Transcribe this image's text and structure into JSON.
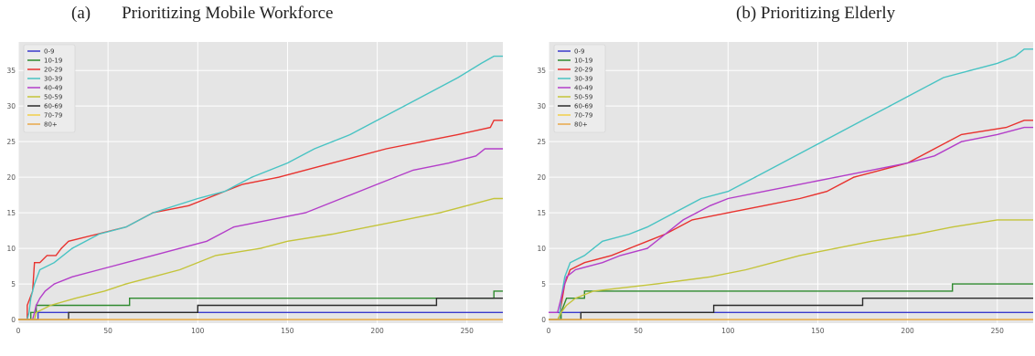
{
  "titles": {
    "a_label": "(a)",
    "a_text": "Prioritizing Mobile Workforce",
    "b_text": "(b) Prioritizing Elderly"
  },
  "colors": {
    "0-9": "#3a3acb",
    "10-19": "#2f8a2f",
    "20-29": "#e8322e",
    "30-39": "#48c3c3",
    "40-49": "#b33ec9",
    "50-59": "#c4c43a",
    "60-69": "#2b2b2b",
    "70-79": "#f2cf4a",
    "80+": "#e8a84a"
  },
  "chart_data": [
    {
      "type": "line",
      "title": "Prioritizing Mobile Workforce",
      "xlim": [
        0,
        270
      ],
      "ylim": [
        -0.5,
        39
      ],
      "xticks": [
        0,
        50,
        100,
        150,
        200,
        250
      ],
      "yticks": [
        0,
        5,
        10,
        15,
        20,
        25,
        30,
        35
      ],
      "legend_position": "top-left",
      "grid": true,
      "series": [
        {
          "name": "0-9",
          "points": [
            [
              0,
              0
            ],
            [
              11,
              0
            ],
            [
              11,
              1
            ],
            [
              270,
              1
            ]
          ]
        },
        {
          "name": "10-19",
          "points": [
            [
              0,
              0
            ],
            [
              7,
              0
            ],
            [
              7,
              1
            ],
            [
              10,
              1
            ],
            [
              10,
              2
            ],
            [
              62,
              2
            ],
            [
              62,
              3
            ],
            [
              265,
              3
            ],
            [
              265,
              4
            ],
            [
              270,
              4
            ]
          ]
        },
        {
          "name": "20-29",
          "points": [
            [
              0,
              0
            ],
            [
              5,
              0
            ],
            [
              5,
              2
            ],
            [
              8,
              4
            ],
            [
              9,
              8
            ],
            [
              12,
              8
            ],
            [
              16,
              9
            ],
            [
              21,
              9
            ],
            [
              24,
              10
            ],
            [
              28,
              11
            ],
            [
              44,
              12
            ],
            [
              60,
              13
            ],
            [
              75,
              15
            ],
            [
              95,
              16
            ],
            [
              105,
              17
            ],
            [
              125,
              19
            ],
            [
              145,
              20
            ],
            [
              175,
              22
            ],
            [
              205,
              24
            ],
            [
              225,
              25
            ],
            [
              245,
              26
            ],
            [
              263,
              27
            ],
            [
              265,
              28
            ],
            [
              270,
              28
            ]
          ]
        },
        {
          "name": "30-39",
          "points": [
            [
              0,
              0
            ],
            [
              5,
              0
            ],
            [
              6,
              1
            ],
            [
              7,
              3
            ],
            [
              9,
              5
            ],
            [
              12,
              7
            ],
            [
              20,
              8
            ],
            [
              30,
              10
            ],
            [
              45,
              12
            ],
            [
              60,
              13
            ],
            [
              75,
              15
            ],
            [
              100,
              17
            ],
            [
              115,
              18
            ],
            [
              130,
              20
            ],
            [
              150,
              22
            ],
            [
              165,
              24
            ],
            [
              185,
              26
            ],
            [
              200,
              28
            ],
            [
              215,
              30
            ],
            [
              230,
              32
            ],
            [
              245,
              34
            ],
            [
              258,
              36
            ],
            [
              265,
              37
            ],
            [
              270,
              37
            ]
          ]
        },
        {
          "name": "40-49",
          "points": [
            [
              0,
              0
            ],
            [
              8,
              0
            ],
            [
              9,
              1
            ],
            [
              10,
              2
            ],
            [
              12,
              3
            ],
            [
              15,
              4
            ],
            [
              20,
              5
            ],
            [
              30,
              6
            ],
            [
              45,
              7
            ],
            [
              60,
              8
            ],
            [
              75,
              9
            ],
            [
              90,
              10
            ],
            [
              105,
              11
            ],
            [
              120,
              13
            ],
            [
              140,
              14
            ],
            [
              160,
              15
            ],
            [
              180,
              17
            ],
            [
              200,
              19
            ],
            [
              220,
              21
            ],
            [
              240,
              22
            ],
            [
              255,
              23
            ],
            [
              260,
              24
            ],
            [
              270,
              24
            ]
          ]
        },
        {
          "name": "50-59",
          "points": [
            [
              0,
              0
            ],
            [
              9,
              0
            ],
            [
              10,
              1
            ],
            [
              18,
              2
            ],
            [
              32,
              3
            ],
            [
              48,
              4
            ],
            [
              60,
              5
            ],
            [
              75,
              6
            ],
            [
              90,
              7
            ],
            [
              110,
              9
            ],
            [
              135,
              10
            ],
            [
              150,
              11
            ],
            [
              175,
              12
            ],
            [
              195,
              13
            ],
            [
              215,
              14
            ],
            [
              235,
              15
            ],
            [
              250,
              16
            ],
            [
              265,
              17
            ],
            [
              270,
              17
            ]
          ]
        },
        {
          "name": "60-69",
          "points": [
            [
              0,
              0
            ],
            [
              28,
              0
            ],
            [
              28,
              1
            ],
            [
              100,
              1
            ],
            [
              100,
              2
            ],
            [
              233,
              2
            ],
            [
              233,
              3
            ],
            [
              270,
              3
            ]
          ]
        },
        {
          "name": "70-79",
          "points": [
            [
              0,
              0
            ],
            [
              270,
              0
            ]
          ]
        },
        {
          "name": "80+",
          "points": [
            [
              0,
              0
            ],
            [
              270,
              0
            ]
          ]
        }
      ]
    },
    {
      "type": "line",
      "title": "Prioritizing Elderly",
      "xlim": [
        0,
        270
      ],
      "ylim": [
        -0.5,
        39
      ],
      "xticks": [
        0,
        50,
        100,
        150,
        200,
        250
      ],
      "yticks": [
        0,
        5,
        10,
        15,
        20,
        25,
        30,
        35
      ],
      "legend_position": "top-left",
      "grid": true,
      "series": [
        {
          "name": "0-9",
          "points": [
            [
              0,
              1
            ],
            [
              270,
              1
            ]
          ]
        },
        {
          "name": "10-19",
          "points": [
            [
              0,
              0
            ],
            [
              7,
              0
            ],
            [
              7,
              1
            ],
            [
              10,
              3
            ],
            [
              20,
              3
            ],
            [
              20,
              4
            ],
            [
              225,
              4
            ],
            [
              225,
              5
            ],
            [
              270,
              5
            ]
          ]
        },
        {
          "name": "20-29",
          "points": [
            [
              0,
              0
            ],
            [
              6,
              0
            ],
            [
              7,
              2
            ],
            [
              9,
              5
            ],
            [
              12,
              7
            ],
            [
              20,
              8
            ],
            [
              35,
              9
            ],
            [
              45,
              10
            ],
            [
              55,
              11
            ],
            [
              65,
              12
            ],
            [
              80,
              14
            ],
            [
              100,
              15
            ],
            [
              120,
              16
            ],
            [
              140,
              17
            ],
            [
              155,
              18
            ],
            [
              170,
              20
            ],
            [
              185,
              21
            ],
            [
              200,
              22
            ],
            [
              215,
              24
            ],
            [
              230,
              26
            ],
            [
              255,
              27
            ],
            [
              265,
              28
            ],
            [
              270,
              28
            ]
          ]
        },
        {
          "name": "30-39",
          "points": [
            [
              0,
              0
            ],
            [
              6,
              0
            ],
            [
              7,
              3
            ],
            [
              9,
              6
            ],
            [
              12,
              8
            ],
            [
              20,
              9
            ],
            [
              30,
              11
            ],
            [
              45,
              12
            ],
            [
              55,
              13
            ],
            [
              70,
              15
            ],
            [
              85,
              17
            ],
            [
              100,
              18
            ],
            [
              115,
              20
            ],
            [
              130,
              22
            ],
            [
              145,
              24
            ],
            [
              160,
              26
            ],
            [
              175,
              28
            ],
            [
              190,
              30
            ],
            [
              205,
              32
            ],
            [
              220,
              34
            ],
            [
              235,
              35
            ],
            [
              250,
              36
            ],
            [
              260,
              37
            ],
            [
              265,
              38
            ],
            [
              270,
              38
            ]
          ]
        },
        {
          "name": "40-49",
          "points": [
            [
              0,
              1
            ],
            [
              5,
              1
            ],
            [
              7,
              3
            ],
            [
              10,
              6
            ],
            [
              15,
              7
            ],
            [
              30,
              8
            ],
            [
              40,
              9
            ],
            [
              55,
              10
            ],
            [
              65,
              12
            ],
            [
              75,
              14
            ],
            [
              90,
              16
            ],
            [
              100,
              17
            ],
            [
              120,
              18
            ],
            [
              140,
              19
            ],
            [
              160,
              20
            ],
            [
              180,
              21
            ],
            [
              200,
              22
            ],
            [
              215,
              23
            ],
            [
              230,
              25
            ],
            [
              250,
              26
            ],
            [
              265,
              27
            ],
            [
              270,
              27
            ]
          ]
        },
        {
          "name": "50-59",
          "points": [
            [
              0,
              0
            ],
            [
              5,
              0
            ],
            [
              7,
              1
            ],
            [
              10,
              2
            ],
            [
              15,
              3
            ],
            [
              25,
              4
            ],
            [
              60,
              5
            ],
            [
              90,
              6
            ],
            [
              110,
              7
            ],
            [
              125,
              8
            ],
            [
              140,
              9
            ],
            [
              160,
              10
            ],
            [
              180,
              11
            ],
            [
              205,
              12
            ],
            [
              225,
              13
            ],
            [
              250,
              14
            ],
            [
              270,
              14
            ]
          ]
        },
        {
          "name": "60-69",
          "points": [
            [
              0,
              0
            ],
            [
              18,
              0
            ],
            [
              18,
              1
            ],
            [
              92,
              1
            ],
            [
              92,
              2
            ],
            [
              175,
              2
            ],
            [
              175,
              3
            ],
            [
              270,
              3
            ]
          ]
        },
        {
          "name": "70-79",
          "points": [
            [
              0,
              0
            ],
            [
              270,
              0
            ]
          ]
        },
        {
          "name": "80+",
          "points": [
            [
              0,
              0
            ],
            [
              270,
              0
            ]
          ]
        }
      ]
    }
  ]
}
